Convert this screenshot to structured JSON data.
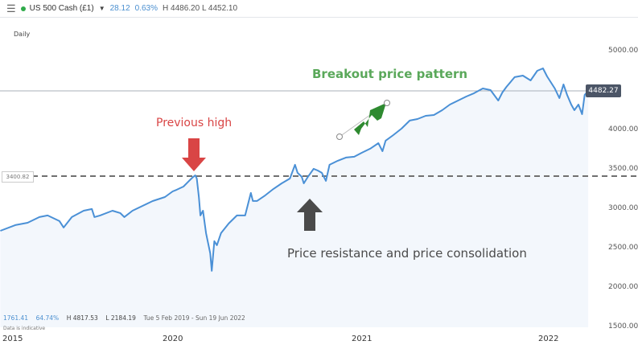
{
  "header": {
    "menu_icon": "hamburger-icon",
    "status_color": "#2faa4a",
    "instrument": "US 500 Cash (£1)",
    "change": "28.12",
    "change_pct": "0.63%",
    "high_low": "H 4486.20 L 4452.10"
  },
  "timeframe": "Daily",
  "current_price_label": "4482.27",
  "level_label": "3400.82",
  "stats": {
    "change": "1761.41",
    "change_pct": "64.74%",
    "high": "H 4817.53",
    "low": "L 2184.19",
    "range": "Tue 5 Feb 2019 - Sun 19 Jun 2022",
    "disclaimer": "Data is indicative"
  },
  "annotations": {
    "previous_high": "Previous high",
    "breakout": "Breakout price pattern",
    "resistance": "Price resistance and price consolidation",
    "colors": {
      "red": "#d94545",
      "green": "#2e8a30",
      "green_text": "#5aa85a",
      "dark": "#4a4a4a"
    }
  },
  "chart_data": {
    "type": "area",
    "line_color": "#4a90d6",
    "fill_color": "#f3f7fc",
    "ylim": [
      1500,
      5000
    ],
    "y_ticks": [
      "5000.00",
      "4000.00",
      "3500.00",
      "3000.00",
      "2500.00",
      "2000.00",
      "1500.00"
    ],
    "x_ticks": [
      "2015",
      "2020",
      "2021",
      "2022"
    ],
    "current_price": 4482.27,
    "resistance_level": 3400.82,
    "points": [
      [
        "2019-02-15",
        2725
      ],
      [
        "2019-03-16",
        2797
      ],
      [
        "2019-04-09",
        2827
      ],
      [
        "2019-05-02",
        2899
      ],
      [
        "2019-05-18",
        2919
      ],
      [
        "2019-06-10",
        2848
      ],
      [
        "2019-06-18",
        2766
      ],
      [
        "2019-07-04",
        2899
      ],
      [
        "2019-07-27",
        2980
      ],
      [
        "2019-08-12",
        3001
      ],
      [
        "2019-08-17",
        2899
      ],
      [
        "2019-08-28",
        2919
      ],
      [
        "2019-09-21",
        2980
      ],
      [
        "2019-10-06",
        2950
      ],
      [
        "2019-10-14",
        2899
      ],
      [
        "2019-10-30",
        2980
      ],
      [
        "2019-12-08",
        3102
      ],
      [
        "2020-01-01",
        3153
      ],
      [
        "2020-01-16",
        3225
      ],
      [
        "2020-01-24",
        3246
      ],
      [
        "2020-02-06",
        3286
      ],
      [
        "2020-02-17",
        3358
      ],
      [
        "2020-02-25",
        3409
      ],
      [
        "2020-02-29",
        3429
      ],
      [
        "2020-03-03",
        3388
      ],
      [
        "2020-03-07",
        3153
      ],
      [
        "2020-03-10",
        2919
      ],
      [
        "2020-03-15",
        2980
      ],
      [
        "2020-03-21",
        2695
      ],
      [
        "2020-03-29",
        2440
      ],
      [
        "2020-04-01",
        2216
      ],
      [
        "2020-04-06",
        2593
      ],
      [
        "2020-04-11",
        2542
      ],
      [
        "2020-04-19",
        2695
      ],
      [
        "2020-05-04",
        2817
      ],
      [
        "2020-05-20",
        2919
      ],
      [
        "2020-06-05",
        2919
      ],
      [
        "2020-06-16",
        3205
      ],
      [
        "2020-06-20",
        3103
      ],
      [
        "2020-06-28",
        3103
      ],
      [
        "2020-07-14",
        3174
      ],
      [
        "2020-07-30",
        3256
      ],
      [
        "2020-08-15",
        3327
      ],
      [
        "2020-08-31",
        3388
      ],
      [
        "2020-09-10",
        3562
      ],
      [
        "2020-09-15",
        3460
      ],
      [
        "2020-09-23",
        3409
      ],
      [
        "2020-09-27",
        3327
      ],
      [
        "2020-10-05",
        3409
      ],
      [
        "2020-10-16",
        3511
      ],
      [
        "2020-10-24",
        3490
      ],
      [
        "2020-11-01",
        3460
      ],
      [
        "2020-11-09",
        3358
      ],
      [
        "2020-11-16",
        3562
      ],
      [
        "2020-12-02",
        3613
      ],
      [
        "2020-12-18",
        3654
      ],
      [
        "2021-01-03",
        3664
      ],
      [
        "2021-01-18",
        3715
      ],
      [
        "2021-02-03",
        3766
      ],
      [
        "2021-02-19",
        3837
      ],
      [
        "2021-02-27",
        3735
      ],
      [
        "2021-03-05",
        3868
      ],
      [
        "2021-03-20",
        3939
      ],
      [
        "2021-04-05",
        4021
      ],
      [
        "2021-04-21",
        4123
      ],
      [
        "2021-05-06",
        4143
      ],
      [
        "2021-05-22",
        4184
      ],
      [
        "2021-06-07",
        4194
      ],
      [
        "2021-06-23",
        4255
      ],
      [
        "2021-07-08",
        4327
      ],
      [
        "2021-07-24",
        4378
      ],
      [
        "2021-08-09",
        4429
      ],
      [
        "2021-08-24",
        4470
      ],
      [
        "2021-09-10",
        4531
      ],
      [
        "2021-09-25",
        4510
      ],
      [
        "2021-10-10",
        4378
      ],
      [
        "2021-10-18",
        4480
      ],
      [
        "2021-10-26",
        4551
      ],
      [
        "2021-11-11",
        4674
      ],
      [
        "2021-11-27",
        4694
      ],
      [
        "2021-12-12",
        4633
      ],
      [
        "2021-12-25",
        4755
      ],
      [
        "2022-01-05",
        4786
      ],
      [
        "2022-01-13",
        4684
      ],
      [
        "2022-01-28",
        4531
      ],
      [
        "2022-02-06",
        4408
      ],
      [
        "2022-02-14",
        4582
      ],
      [
        "2022-02-21",
        4449
      ],
      [
        "2022-03-01",
        4327
      ],
      [
        "2022-03-07",
        4255
      ],
      [
        "2022-03-15",
        4327
      ],
      [
        "2022-03-22",
        4204
      ],
      [
        "2022-03-27",
        4449
      ],
      [
        "2022-04-03",
        4500
      ]
    ]
  }
}
